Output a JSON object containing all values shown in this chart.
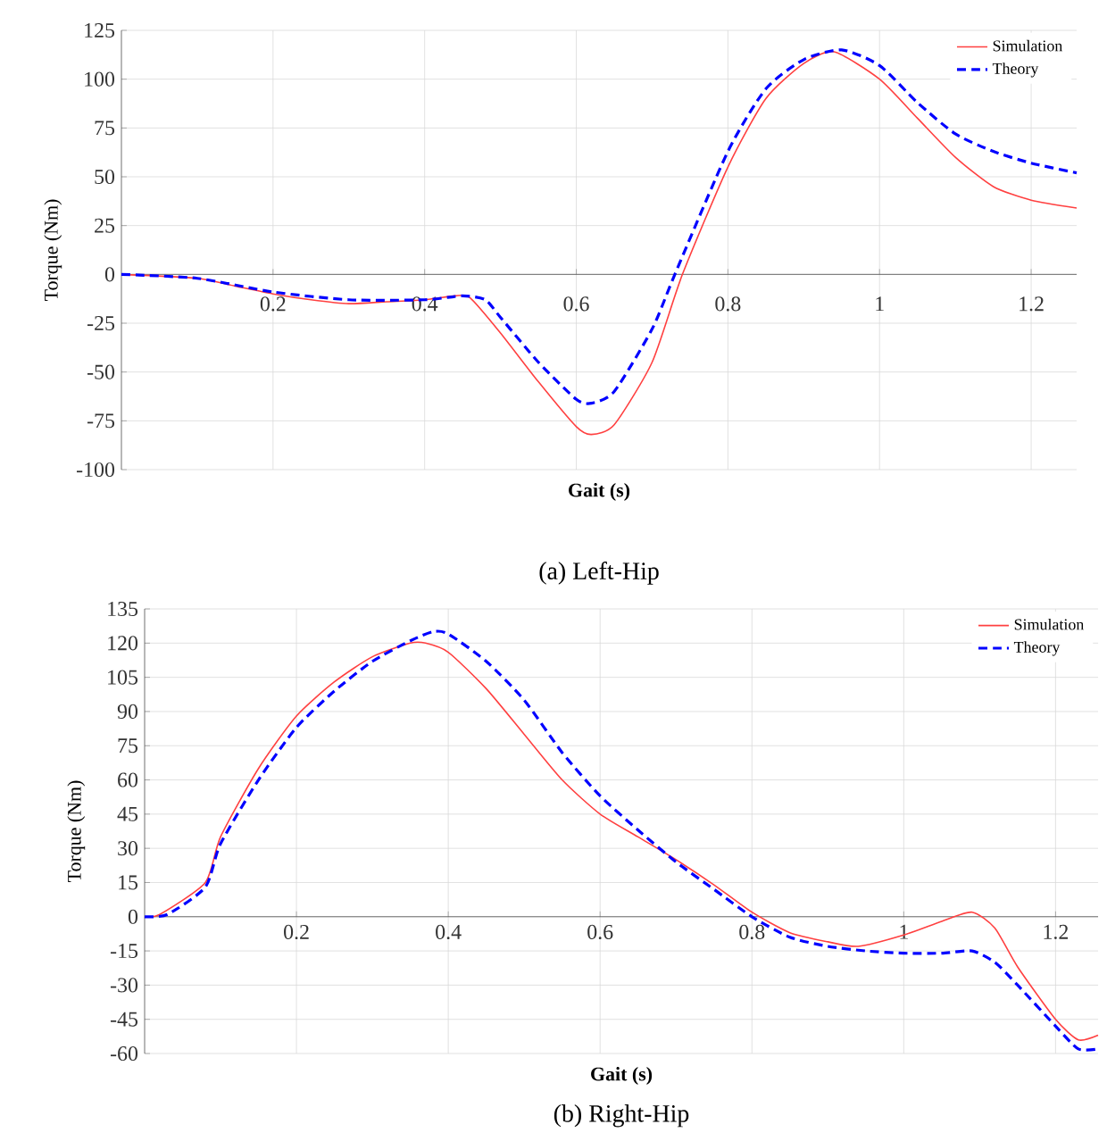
{
  "chart_data": [
    {
      "type": "line",
      "xlabel": "Gait (s)",
      "ylabel": "Torque (Nm)",
      "annotations": [
        "(a) Left-Hip"
      ],
      "xlim": [
        0,
        1.26
      ],
      "ylim": [
        -100,
        125
      ],
      "xticks": [
        0.2,
        0.4,
        0.6,
        0.8,
        1,
        1.2
      ],
      "yticks": [
        -100,
        -75,
        -50,
        -25,
        0,
        25,
        50,
        75,
        100,
        125
      ],
      "grid": true,
      "legend": "top right",
      "series": [
        {
          "name": "Simulation",
          "color": "#ff4040",
          "line_style": "solid",
          "x": [
            0,
            0.1,
            0.15,
            0.2,
            0.25,
            0.3,
            0.35,
            0.4,
            0.44,
            0.46,
            0.5,
            0.55,
            0.6,
            0.62,
            0.65,
            0.7,
            0.74,
            0.8,
            0.85,
            0.9,
            0.94,
            1.0,
            1.05,
            1.1,
            1.15,
            1.2,
            1.26
          ],
          "values": [
            0,
            -2,
            -6,
            -10,
            -13,
            -15,
            -14,
            -13,
            -11,
            -12,
            -30,
            -55,
            -78,
            -82,
            -77,
            -45,
            0,
            55,
            90,
            108,
            114,
            100,
            80,
            60,
            45,
            38,
            34
          ]
        },
        {
          "name": "Theory",
          "color": "#0000ff",
          "line_style": "dashed",
          "x": [
            0,
            0.1,
            0.2,
            0.3,
            0.4,
            0.45,
            0.48,
            0.5,
            0.55,
            0.6,
            0.62,
            0.65,
            0.7,
            0.73,
            0.8,
            0.85,
            0.9,
            0.95,
            1.0,
            1.05,
            1.1,
            1.15,
            1.2,
            1.26
          ],
          "values": [
            0,
            -2,
            -9,
            -13,
            -13,
            -11,
            -13,
            -22,
            -45,
            -64,
            -66,
            -60,
            -28,
            0,
            63,
            95,
            110,
            115,
            107,
            88,
            72,
            63,
            57,
            52
          ]
        }
      ]
    },
    {
      "type": "line",
      "xlabel": "Gait (s)",
      "ylabel": "Torque (Nm)",
      "annotations": [
        "(b) Right-Hip"
      ],
      "xlim": [
        0,
        1.256
      ],
      "ylim": [
        -60,
        135
      ],
      "xticks": [
        0.2,
        0.4,
        0.6,
        0.8,
        1,
        1.2
      ],
      "yticks": [
        -60,
        -45,
        -30,
        -15,
        0,
        15,
        30,
        45,
        60,
        75,
        90,
        105,
        120,
        135
      ],
      "grid": true,
      "legend": "top right",
      "series": [
        {
          "name": "Simulation",
          "color": "#ff4040",
          "line_style": "solid",
          "x": [
            0,
            0.02,
            0.08,
            0.1,
            0.15,
            0.2,
            0.25,
            0.3,
            0.35,
            0.37,
            0.4,
            0.45,
            0.5,
            0.55,
            0.6,
            0.65,
            0.7,
            0.75,
            0.8,
            0.85,
            0.9,
            0.94,
            1.0,
            1.05,
            1.09,
            1.12,
            1.15,
            1.2,
            1.23,
            1.256
          ],
          "values": [
            0,
            1,
            15,
            35,
            65,
            88,
            103,
            114,
            120,
            120,
            116,
            100,
            80,
            60,
            45,
            35,
            25,
            14,
            2,
            -7,
            -11,
            -13,
            -8,
            -2,
            2,
            -5,
            -22,
            -45,
            -54,
            -52
          ]
        },
        {
          "name": "Theory",
          "color": "#0000ff",
          "line_style": "dashed",
          "x": [
            0,
            0.03,
            0.08,
            0.1,
            0.15,
            0.2,
            0.25,
            0.3,
            0.35,
            0.38,
            0.4,
            0.45,
            0.5,
            0.55,
            0.6,
            0.65,
            0.7,
            0.75,
            0.8,
            0.85,
            0.9,
            0.95,
            1.0,
            1.05,
            1.09,
            1.12,
            1.15,
            1.2,
            1.23,
            1.256
          ],
          "values": [
            0,
            1,
            13,
            32,
            60,
            83,
            99,
            112,
            121,
            125,
            124,
            112,
            95,
            72,
            53,
            38,
            24,
            12,
            0,
            -9,
            -13,
            -15,
            -16,
            -16,
            -15,
            -20,
            -30,
            -48,
            -58,
            -58
          ]
        }
      ]
    }
  ]
}
